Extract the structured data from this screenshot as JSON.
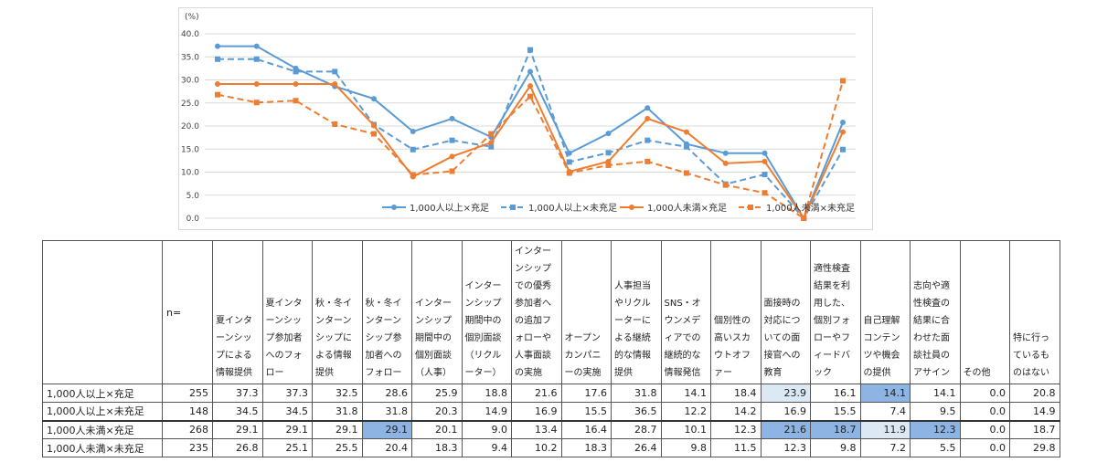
{
  "chart_data": {
    "type": "line",
    "yunit": "(%)",
    "ylim": [
      0,
      40
    ],
    "yticks": [
      "0.0",
      "5.0",
      "10.0",
      "15.0",
      "20.0",
      "25.0",
      "30.0",
      "35.0",
      "40.0"
    ],
    "grid": true,
    "legend_position": "bottom",
    "categories": [
      "夏インターンシップによる情報提供",
      "夏インターンシップ参加者へのフォロー",
      "秋・冬インターンシップによる情報提供",
      "秋・冬インターンシップ参加者へのフォロー",
      "インターンシップ期間中の個別面談（人事）",
      "インターンシップ期間中の個別面談（リクルーター）",
      "インターンシップでの優秀参加者への追加フォローや人事面談の実施",
      "オープンカンパニーの実施",
      "人事担当やリクルーターによる継続的な情報提供",
      "SNS・オウンメディアでの継続的な情報発信",
      "個別性の高いスカウトオファー",
      "面接時の対応についての面接官への教育",
      "適性検査結果を利用した、個別フォローやフィードバック",
      "自己理解コンテンツや機会の提供",
      "志向や適性検査の結果に合わせた面談社員のアサイン",
      "その他",
      "特に行っているものはない"
    ],
    "series": [
      {
        "name": "1,000人以上×充足",
        "color": "#5b9bd5",
        "dashed": false,
        "marker": "circle",
        "values": [
          37.3,
          37.3,
          32.5,
          28.6,
          25.9,
          18.8,
          21.6,
          17.6,
          31.8,
          14.1,
          18.4,
          23.9,
          16.1,
          14.1,
          14.1,
          0.0,
          20.8
        ]
      },
      {
        "name": "1,000人以上×未充足",
        "color": "#5b9bd5",
        "dashed": true,
        "marker": "square",
        "values": [
          34.5,
          34.5,
          31.8,
          31.8,
          20.3,
          14.9,
          16.9,
          15.5,
          36.5,
          12.2,
          14.2,
          16.9,
          15.5,
          7.4,
          9.5,
          0.0,
          14.9
        ]
      },
      {
        "name": "1,000人未満×充足",
        "color": "#ed7d31",
        "dashed": false,
        "marker": "circle",
        "values": [
          29.1,
          29.1,
          29.1,
          29.1,
          20.1,
          9.0,
          13.4,
          16.4,
          28.7,
          10.1,
          12.3,
          21.6,
          18.7,
          11.9,
          12.3,
          0.0,
          18.7
        ]
      },
      {
        "name": "1,000人未満×未充足",
        "color": "#ed7d31",
        "dashed": true,
        "marker": "square",
        "values": [
          26.8,
          25.1,
          25.5,
          20.4,
          18.3,
          9.4,
          10.2,
          18.3,
          26.4,
          9.8,
          11.5,
          12.3,
          9.8,
          7.2,
          5.5,
          0.0,
          29.8
        ]
      }
    ]
  },
  "table": {
    "n_header": "n=",
    "headers": [
      "夏インターンシップによる情報提供",
      "夏インターンシップ参加者へのフォロー",
      "秋・冬インターンシップによる情報提供",
      "秋・冬インターンシップ参加者へのフォロー",
      "インターンシップ期間中の個別面談（人事）",
      "インターンシップ期間中の個別面談（リクルーター）",
      "インターンシップでの優秀参加者への追加フォローや人事面談の実施",
      "オープンカンパニーの実施",
      "人事担当やリクルーターによる継続的な情報提供",
      "SNS・オウンメディアでの継続的な情報発信",
      "個別性の高いスカウトオファー",
      "面接時の対応についての面接官への教育",
      "適性検査結果を利用した、個別フォローやフィードバック",
      "自己理解コンテンツや機会の提供",
      "志向や適性検査の結果に合わせた面談社員のアサイン",
      "その他",
      "特に行っているものはない"
    ],
    "rows": [
      {
        "label": "1,000人以上×充足",
        "n": "255",
        "values": [
          "37.3",
          "37.3",
          "32.5",
          "28.6",
          "25.9",
          "18.8",
          "21.6",
          "17.6",
          "31.8",
          "14.1",
          "18.4",
          "23.9",
          "16.1",
          "14.1",
          "14.1",
          "0.0",
          "20.8"
        ]
      },
      {
        "label": "1,000人以上×未充足",
        "n": "148",
        "values": [
          "34.5",
          "34.5",
          "31.8",
          "31.8",
          "20.3",
          "14.9",
          "16.9",
          "15.5",
          "36.5",
          "12.2",
          "14.2",
          "16.9",
          "15.5",
          "7.4",
          "9.5",
          "0.0",
          "14.9"
        ]
      },
      {
        "label": "1,000人未満×充足",
        "n": "268",
        "values": [
          "29.1",
          "29.1",
          "29.1",
          "29.1",
          "20.1",
          "9.0",
          "13.4",
          "16.4",
          "28.7",
          "10.1",
          "12.3",
          "21.6",
          "18.7",
          "11.9",
          "12.3",
          "0.0",
          "18.7"
        ]
      },
      {
        "label": "1,000人未満×未充足",
        "n": "235",
        "values": [
          "26.8",
          "25.1",
          "25.5",
          "20.4",
          "18.3",
          "9.4",
          "10.2",
          "18.3",
          "26.4",
          "9.8",
          "11.5",
          "12.3",
          "9.8",
          "7.2",
          "5.5",
          "0.0",
          "29.8"
        ]
      }
    ],
    "highlights": [
      {
        "row": 0,
        "col": 11,
        "color": "#dde8f5"
      },
      {
        "row": 0,
        "col": 13,
        "color": "#8eb4e3"
      },
      {
        "row": 2,
        "col": 3,
        "color": "#8eb4e3"
      },
      {
        "row": 2,
        "col": 11,
        "color": "#8eb4e3"
      },
      {
        "row": 2,
        "col": 12,
        "color": "#8eb4e3"
      },
      {
        "row": 2,
        "col": 13,
        "color": "#dde8f5"
      },
      {
        "row": 2,
        "col": 14,
        "color": "#8eb4e3"
      }
    ]
  }
}
